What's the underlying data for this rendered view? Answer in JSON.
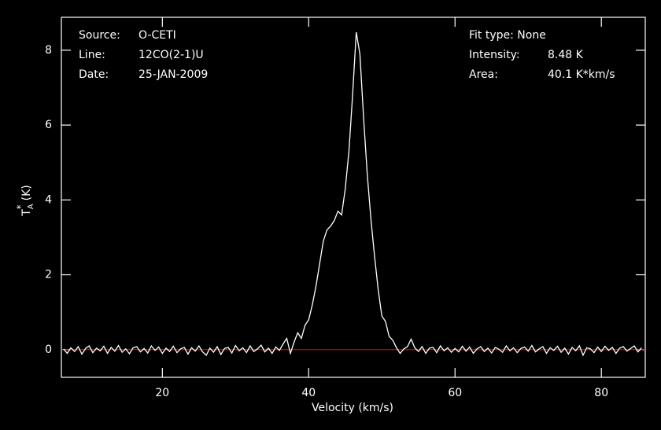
{
  "chart_data": {
    "type": "line",
    "x_label": "Velocity (km/s)",
    "y_label": {
      "main": "T",
      "sub": "A",
      "sup": "*",
      "unit": "(K)"
    },
    "info_left": [
      [
        "Source:",
        "O-CETI"
      ],
      [
        "Line:",
        "12CO(2-1)U"
      ],
      [
        "Date:",
        "25-JAN-2009"
      ]
    ],
    "info_right": [
      "Fit type: None",
      [
        "Intensity:",
        "8.48 K"
      ],
      [
        "Area:",
        "40.1 K*km/s"
      ]
    ],
    "xlim": [
      6.2,
      86.0
    ],
    "ylim": [
      -0.74,
      8.88
    ],
    "xticks": [
      20,
      40,
      60,
      80
    ],
    "yticks": [
      0,
      2,
      4,
      6,
      8
    ],
    "baseline_color": "#ff0000",
    "series": [
      {
        "color": "#ffffff",
        "x": [
          6.5,
          7,
          7.5,
          8,
          8.5,
          9,
          9.5,
          10,
          10.5,
          11,
          11.5,
          12,
          12.5,
          13,
          13.5,
          14,
          14.5,
          15,
          15.5,
          16,
          16.5,
          17,
          17.5,
          18,
          18.5,
          19,
          19.5,
          20,
          20.5,
          21,
          21.5,
          22,
          22.5,
          23,
          23.5,
          24,
          24.5,
          25,
          25.5,
          26,
          26.5,
          27,
          27.5,
          28,
          28.5,
          29,
          29.5,
          30,
          30.5,
          31,
          31.5,
          32,
          32.5,
          33,
          33.5,
          34,
          34.5,
          35,
          35.5,
          36,
          36.5,
          37,
          37.5,
          38,
          38.5,
          39,
          39.5,
          40,
          40.5,
          41,
          41.5,
          42,
          42.5,
          43,
          43.5,
          44,
          44.5,
          45,
          45.5,
          46,
          46.5,
          47,
          47.5,
          48,
          48.5,
          49,
          49.5,
          50,
          50.5,
          51,
          51.5,
          52,
          52.5,
          53,
          53.5,
          54,
          54.5,
          55,
          55.5,
          56,
          56.5,
          57,
          57.5,
          58,
          58.5,
          59,
          59.5,
          60,
          60.5,
          61,
          61.5,
          62,
          62.5,
          63,
          63.5,
          64,
          64.5,
          65,
          65.5,
          66,
          66.5,
          67,
          67.5,
          68,
          68.5,
          69,
          69.5,
          70,
          70.5,
          71,
          71.5,
          72,
          72.5,
          73,
          73.5,
          74,
          74.5,
          75,
          75.5,
          76,
          76.5,
          77,
          77.5,
          78,
          78.5,
          79,
          79.5,
          80,
          80.5,
          81,
          81.5,
          82,
          82.5,
          83,
          83.5,
          84,
          84.5,
          85,
          85.5
        ],
        "values": [
          0.02,
          -0.1,
          0.05,
          -0.05,
          0.08,
          -0.12,
          0.03,
          0.1,
          -0.08,
          0.04,
          -0.03,
          0.09,
          -0.1,
          0.06,
          -0.04,
          0.11,
          -0.07,
          0.02,
          -0.11,
          0.05,
          0.08,
          -0.06,
          0.03,
          -0.09,
          0.1,
          -0.02,
          0.07,
          -0.1,
          0.04,
          -0.05,
          0.09,
          -0.08,
          0.02,
          0.06,
          -0.12,
          0.05,
          -0.04,
          0.1,
          -0.06,
          -0.15,
          0.04,
          -0.07,
          0.08,
          -0.13,
          0.03,
          0.06,
          -0.09,
          0.11,
          -0.03,
          0.05,
          -0.08,
          0.1,
          -0.05,
          0.02,
          0.12,
          -0.06,
          0.04,
          -0.1,
          0.07,
          -0.02,
          0.15,
          0.3,
          -0.1,
          0.2,
          0.45,
          0.3,
          0.65,
          0.8,
          1.2,
          1.7,
          2.3,
          2.9,
          3.2,
          3.3,
          3.45,
          3.7,
          3.6,
          4.3,
          5.3,
          6.8,
          8.48,
          7.9,
          6.2,
          4.7,
          3.5,
          2.5,
          1.6,
          0.9,
          0.75,
          0.35,
          0.25,
          0.05,
          -0.1,
          0.02,
          0.08,
          0.28,
          0.05,
          -0.05,
          0.08,
          -0.1,
          0.04,
          0.06,
          -0.08,
          0.1,
          -0.03,
          0.05,
          -0.07,
          0.03,
          -0.06,
          0.09,
          -0.04,
          0.07,
          -0.1,
          0.02,
          0.08,
          -0.05,
          0.04,
          -0.09,
          0.06,
          0.01,
          -0.07,
          0.1,
          -0.03,
          0.05,
          -0.08,
          0.03,
          0.07,
          -0.04,
          0.11,
          -0.06,
          0.02,
          0.08,
          -0.1,
          0.05,
          -0.02,
          0.09,
          -0.07,
          0.04,
          -0.12,
          0.06,
          -0.03,
          0.1,
          -0.15,
          0.05,
          0.02,
          -0.08,
          0.07,
          -0.05,
          0.09,
          -0.02,
          0.06,
          -0.1,
          0.04,
          0.08,
          -0.04,
          0.03,
          0.1,
          -0.06,
          0.05
        ]
      }
    ]
  }
}
